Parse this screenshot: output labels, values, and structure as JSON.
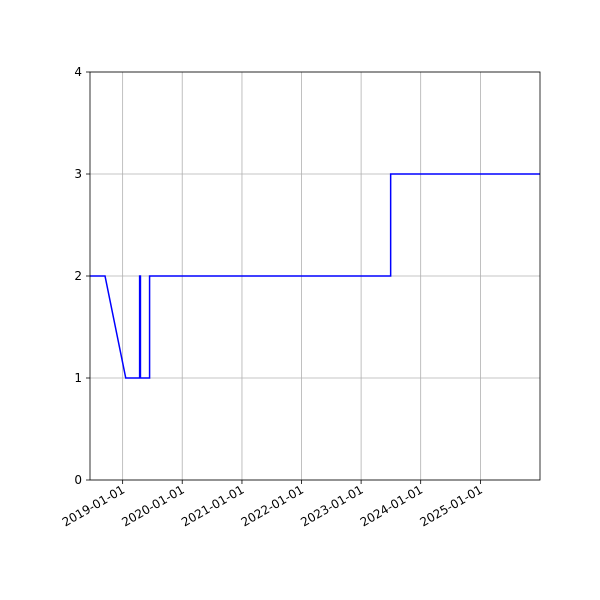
{
  "chart_data": {
    "type": "line",
    "title": "",
    "xlabel": "",
    "ylabel": "",
    "x_axis_type": "date",
    "xlim": [
      "2018-06-15",
      "2026-01-01"
    ],
    "ylim": [
      0,
      4
    ],
    "grid": true,
    "x_ticks": [
      "2019-01-01",
      "2020-01-01",
      "2021-01-01",
      "2022-01-01",
      "2023-01-01",
      "2024-01-01",
      "2025-01-01"
    ],
    "y_ticks": [
      0,
      1,
      2,
      3,
      4
    ],
    "series": [
      {
        "color": "#0000ff",
        "points": [
          {
            "x": "2018-06-15",
            "y": 2
          },
          {
            "x": "2018-09-15",
            "y": 2
          },
          {
            "x": "2019-01-20",
            "y": 1
          },
          {
            "x": "2019-04-15",
            "y": 1
          },
          {
            "x": "2019-04-15",
            "y": 2
          },
          {
            "x": "2019-04-20",
            "y": 2
          },
          {
            "x": "2019-04-20",
            "y": 1
          },
          {
            "x": "2019-06-15",
            "y": 1
          },
          {
            "x": "2019-06-15",
            "y": 2
          },
          {
            "x": "2023-07-01",
            "y": 2
          },
          {
            "x": "2023-07-01",
            "y": 3
          },
          {
            "x": "2026-01-01",
            "y": 3
          }
        ]
      }
    ]
  }
}
